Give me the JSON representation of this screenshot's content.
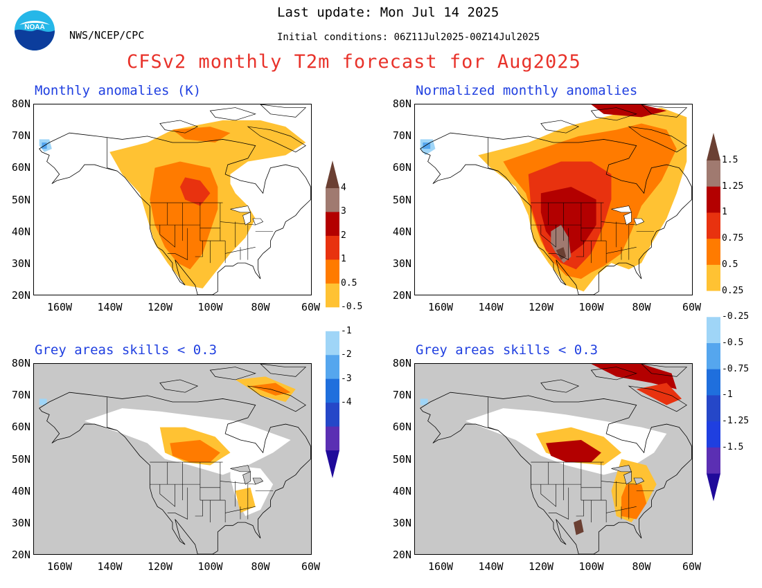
{
  "header": {
    "agency": "NWS/NCEP/CPC",
    "last_update": "Last update: Mon Jul 14 2025",
    "initial_conditions": "Initial conditions: 06Z11Jul2025-00Z14Jul2025",
    "title": "CFSv2 monthly T2m forecast for Aug2025"
  },
  "logo": {
    "text": "NOAA"
  },
  "panels": [
    {
      "id": "top-left",
      "title": "Monthly anomalies (K)"
    },
    {
      "id": "top-right",
      "title": "Normalized monthly anomalies"
    },
    {
      "id": "bottom-left",
      "title": "Grey areas skills < 0.3"
    },
    {
      "id": "bottom-right",
      "title": "Grey areas skills < 0.3"
    }
  ],
  "axes": {
    "lat_labels": [
      "80N",
      "70N",
      "60N",
      "50N",
      "40N",
      "30N",
      "20N"
    ],
    "lon_labels": [
      "160W",
      "140W",
      "120W",
      "100W",
      "80W",
      "60W"
    ]
  },
  "colorbar_left": {
    "ticks": [
      "4",
      "3",
      "2",
      "1",
      "0.5",
      "-0.5",
      "-1",
      "-2",
      "-3",
      "-4"
    ],
    "colors": [
      "#6b4033",
      "#a07a70",
      "#b30000",
      "#e8320f",
      "#ff7b00",
      "#ffc233",
      "#ffffff",
      "#9fd5f7",
      "#55a6ee",
      "#1f6fdd",
      "#2547c8",
      "#5b2fb3",
      "#1f0a9a"
    ]
  },
  "colorbar_right": {
    "ticks": [
      "1.5",
      "1.25",
      "1",
      "0.75",
      "0.5",
      "0.25",
      "-0.25",
      "-0.5",
      "-0.75",
      "-1",
      "-1.25",
      "-1.5"
    ]
  },
  "colors": {
    "grey_mask": "#c8c8c8",
    "title_red": "#e8322a",
    "panel_title_blue": "#1f3fe0"
  }
}
